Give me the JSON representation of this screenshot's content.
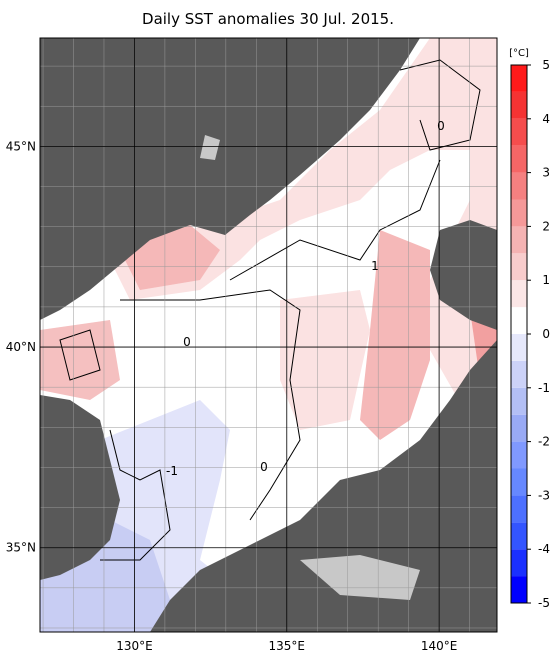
{
  "title": "Daily SST anomalies 30 Jul. 2015.",
  "lon_range": [
    126.9,
    141.9
  ],
  "lat_range": [
    32.9,
    47.7
  ],
  "lon_ticks": [
    {
      "value": 130,
      "label": "130°E"
    },
    {
      "value": 135,
      "label": "135°E"
    },
    {
      "value": 140,
      "label": "140°E"
    }
  ],
  "lat_ticks": [
    {
      "value": 45,
      "label": "45°N"
    },
    {
      "value": 40,
      "label": "40°N"
    },
    {
      "value": 35,
      "label": "35°N"
    }
  ],
  "colorbar": {
    "unit": "[°C]",
    "range": [
      -5,
      5
    ],
    "ticks": [
      5,
      4,
      3,
      2,
      1,
      0,
      -1,
      -2,
      -3,
      -4,
      -5
    ],
    "colors": [
      "#0000ff",
      "#1a30ff",
      "#3355ff",
      "#4d70ff",
      "#6688ff",
      "#8099ff",
      "#99aaf5",
      "#b3bff5",
      "#ccd2f8",
      "#e6e8fb",
      "#ffffff",
      "#fbe6e6",
      "#f8cccc",
      "#f5b3b3",
      "#f59999",
      "#f58080",
      "#f56666",
      "#f54d4d",
      "#f53333",
      "#ff1a1a"
    ]
  },
  "contour_labels": [
    "0",
    "1",
    "0",
    "-1",
    "0"
  ]
}
